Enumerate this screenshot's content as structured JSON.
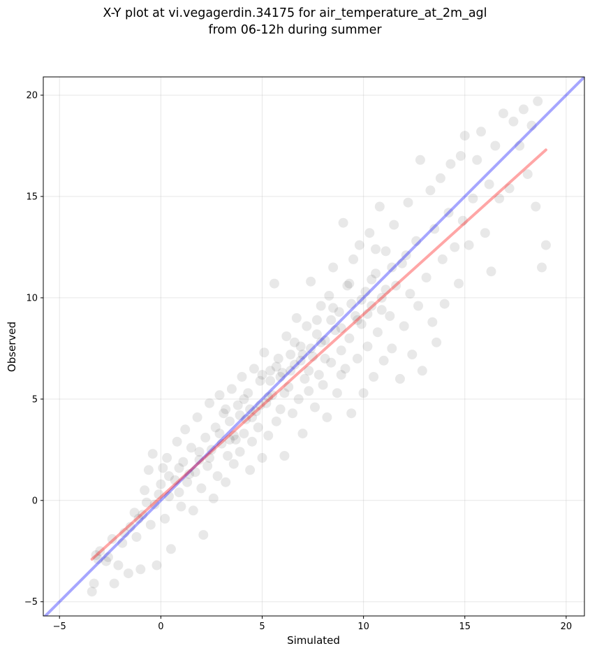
{
  "chart_data": {
    "type": "scatter",
    "title_line1": "X-Y plot at vi.vegagerdin.34175 for air_temperature_at_2m_agl",
    "title_line2": "from 06-12h during summer",
    "xlabel": "Simulated",
    "ylabel": "Observed",
    "xlim": [
      -5.8,
      20.9
    ],
    "ylim": [
      -5.7,
      20.9
    ],
    "xticks": [
      -5,
      0,
      5,
      10,
      15,
      20
    ],
    "yticks": [
      -5,
      0,
      5,
      10,
      15,
      20
    ],
    "grid": true,
    "points_color": "#000000",
    "points_opacity": 0.09,
    "identity_line": {
      "color": "#0000ff",
      "opacity": 0.35,
      "from": [
        -5.8,
        -5.8
      ],
      "to": [
        20.9,
        20.9
      ]
    },
    "fit_line": {
      "color": "#ff0000",
      "opacity": 0.35,
      "from": [
        -3.4,
        -2.9
      ],
      "to": [
        19.0,
        17.3
      ]
    },
    "points": [
      [
        -3.4,
        -4.5
      ],
      [
        -3.3,
        -4.1
      ],
      [
        -3.2,
        -2.7
      ],
      [
        -3.0,
        -2.5
      ],
      [
        -2.7,
        -3.0
      ],
      [
        -2.6,
        -2.8
      ],
      [
        -2.3,
        -4.1
      ],
      [
        -2.1,
        -3.2
      ],
      [
        -1.9,
        -2.1
      ],
      [
        -1.6,
        -3.6
      ],
      [
        -1.5,
        -1.3
      ],
      [
        -1.2,
        -1.8
      ],
      [
        -1.1,
        -0.9
      ],
      [
        -1.0,
        -3.4
      ],
      [
        -0.9,
        -0.7
      ],
      [
        -0.8,
        0.5
      ],
      [
        -0.6,
        1.5
      ],
      [
        -0.5,
        -1.2
      ],
      [
        -0.4,
        2.3
      ],
      [
        -0.3,
        -0.2
      ],
      [
        -0.2,
        -3.2
      ],
      [
        0.0,
        0.8
      ],
      [
        0.1,
        1.6
      ],
      [
        0.2,
        -0.9
      ],
      [
        0.3,
        2.1
      ],
      [
        0.4,
        0.2
      ],
      [
        0.5,
        -2.4
      ],
      [
        0.7,
        1.0
      ],
      [
        0.8,
        2.9
      ],
      [
        0.9,
        0.4
      ],
      [
        1.0,
        -0.3
      ],
      [
        1.1,
        1.9
      ],
      [
        1.2,
        3.5
      ],
      [
        1.3,
        0.9
      ],
      [
        1.5,
        2.6
      ],
      [
        1.6,
        -0.5
      ],
      [
        1.7,
        1.4
      ],
      [
        1.8,
        4.1
      ],
      [
        1.9,
        2.0
      ],
      [
        2.0,
        0.6
      ],
      [
        2.1,
        -1.7
      ],
      [
        2.2,
        3.1
      ],
      [
        2.3,
        1.7
      ],
      [
        2.4,
        4.8
      ],
      [
        2.5,
        2.5
      ],
      [
        2.6,
        0.1
      ],
      [
        2.7,
        3.6
      ],
      [
        2.8,
        1.2
      ],
      [
        2.9,
        5.2
      ],
      [
        3.0,
        2.8
      ],
      [
        3.1,
        4.3
      ],
      [
        3.2,
        0.9
      ],
      [
        3.3,
        2.2
      ],
      [
        3.4,
        3.9
      ],
      [
        3.5,
        5.5
      ],
      [
        3.6,
        1.8
      ],
      [
        3.7,
        3.0
      ],
      [
        3.8,
        4.7
      ],
      [
        3.9,
        2.4
      ],
      [
        4.0,
        6.1
      ],
      [
        4.1,
        3.3
      ],
      [
        4.2,
        4.0
      ],
      [
        4.3,
        5.3
      ],
      [
        4.4,
        1.5
      ],
      [
        4.5,
        2.9
      ],
      [
        4.6,
        6.5
      ],
      [
        4.7,
        4.4
      ],
      [
        4.8,
        3.6
      ],
      [
        4.9,
        5.9
      ],
      [
        5.0,
        2.1
      ],
      [
        5.1,
        7.3
      ],
      [
        5.2,
        4.8
      ],
      [
        5.3,
        3.2
      ],
      [
        5.4,
        6.4
      ],
      [
        5.5,
        5.2
      ],
      [
        5.6,
        10.7
      ],
      [
        5.7,
        3.9
      ],
      [
        5.8,
        7.0
      ],
      [
        5.9,
        4.5
      ],
      [
        6.0,
        6.3
      ],
      [
        6.1,
        2.2
      ],
      [
        6.2,
        8.1
      ],
      [
        6.3,
        5.6
      ],
      [
        6.4,
        7.2
      ],
      [
        6.5,
        4.3
      ],
      [
        6.6,
        6.7
      ],
      [
        6.7,
        9.0
      ],
      [
        6.8,
        5.0
      ],
      [
        6.9,
        7.6
      ],
      [
        7.0,
        3.3
      ],
      [
        7.1,
        6.0
      ],
      [
        7.2,
        8.6
      ],
      [
        7.3,
        5.4
      ],
      [
        7.4,
        10.8
      ],
      [
        7.5,
        7.1
      ],
      [
        7.6,
        4.6
      ],
      [
        7.7,
        8.9
      ],
      [
        7.8,
        6.2
      ],
      [
        7.9,
        9.6
      ],
      [
        8.0,
        5.7
      ],
      [
        8.1,
        7.9
      ],
      [
        8.2,
        4.1
      ],
      [
        8.3,
        10.1
      ],
      [
        8.4,
        6.8
      ],
      [
        8.5,
        11.5
      ],
      [
        8.6,
        8.4
      ],
      [
        8.7,
        5.3
      ],
      [
        8.8,
        9.3
      ],
      [
        8.9,
        7.4
      ],
      [
        9.0,
        13.7
      ],
      [
        9.1,
        6.5
      ],
      [
        9.2,
        10.6
      ],
      [
        9.3,
        8.0
      ],
      [
        9.4,
        4.3
      ],
      [
        9.5,
        11.9
      ],
      [
        9.6,
        9.1
      ],
      [
        9.7,
        7.0
      ],
      [
        9.8,
        12.6
      ],
      [
        9.9,
        8.7
      ],
      [
        10.0,
        5.3
      ],
      [
        10.1,
        10.3
      ],
      [
        10.2,
        7.6
      ],
      [
        10.3,
        13.2
      ],
      [
        10.4,
        9.6
      ],
      [
        10.5,
        6.1
      ],
      [
        10.6,
        11.2
      ],
      [
        10.7,
        8.3
      ],
      [
        10.8,
        14.5
      ],
      [
        10.9,
        10.0
      ],
      [
        11.0,
        6.9
      ],
      [
        11.1,
        12.3
      ],
      [
        11.3,
        9.1
      ],
      [
        11.4,
        7.5
      ],
      [
        11.5,
        13.6
      ],
      [
        11.6,
        10.6
      ],
      [
        11.8,
        6.0
      ],
      [
        11.9,
        11.7
      ],
      [
        12.0,
        8.6
      ],
      [
        12.2,
        14.7
      ],
      [
        12.3,
        10.2
      ],
      [
        12.4,
        7.2
      ],
      [
        12.6,
        12.8
      ],
      [
        12.7,
        9.6
      ],
      [
        12.8,
        16.8
      ],
      [
        12.9,
        6.4
      ],
      [
        13.1,
        11.0
      ],
      [
        13.3,
        15.3
      ],
      [
        13.4,
        8.8
      ],
      [
        13.5,
        13.4
      ],
      [
        13.6,
        7.8
      ],
      [
        13.8,
        15.9
      ],
      [
        13.9,
        11.9
      ],
      [
        14.0,
        9.7
      ],
      [
        14.2,
        14.2
      ],
      [
        14.3,
        16.6
      ],
      [
        14.5,
        12.5
      ],
      [
        14.7,
        10.7
      ],
      [
        14.8,
        17.0
      ],
      [
        14.9,
        13.8
      ],
      [
        15.0,
        18.0
      ],
      [
        15.2,
        12.6
      ],
      [
        15.4,
        14.9
      ],
      [
        15.6,
        16.8
      ],
      [
        15.8,
        18.2
      ],
      [
        16.0,
        13.2
      ],
      [
        16.2,
        15.6
      ],
      [
        16.3,
        11.3
      ],
      [
        16.5,
        17.5
      ],
      [
        16.7,
        14.9
      ],
      [
        16.9,
        19.1
      ],
      [
        17.2,
        15.4
      ],
      [
        17.4,
        18.7
      ],
      [
        17.7,
        17.5
      ],
      [
        17.9,
        19.3
      ],
      [
        18.1,
        16.1
      ],
      [
        18.3,
        18.5
      ],
      [
        18.5,
        14.5
      ],
      [
        18.6,
        19.7
      ],
      [
        18.8,
        11.5
      ],
      [
        19.0,
        12.6
      ],
      [
        -3.1,
        -2.9
      ],
      [
        -2.4,
        -1.9
      ],
      [
        -1.8,
        -1.6
      ],
      [
        -1.3,
        -0.6
      ],
      [
        -0.7,
        -0.1
      ],
      [
        -0.1,
        0.3
      ],
      [
        0.4,
        1.2
      ],
      [
        0.9,
        1.6
      ],
      [
        1.4,
        1.3
      ],
      [
        1.9,
        2.4
      ],
      [
        2.4,
        2.1
      ],
      [
        2.9,
        3.3
      ],
      [
        3.4,
        3.0
      ],
      [
        3.9,
        4.2
      ],
      [
        4.4,
        4.5
      ],
      [
        4.9,
        4.7
      ],
      [
        5.4,
        5.9
      ],
      [
        5.9,
        6.1
      ],
      [
        6.4,
        6.4
      ],
      [
        6.9,
        6.9
      ],
      [
        7.4,
        7.5
      ],
      [
        7.9,
        7.8
      ],
      [
        8.4,
        8.9
      ],
      [
        8.9,
        8.5
      ],
      [
        9.4,
        9.7
      ],
      [
        9.9,
        9.9
      ],
      [
        10.4,
        10.9
      ],
      [
        10.9,
        9.4
      ],
      [
        11.4,
        11.5
      ],
      [
        12.1,
        12.1
      ],
      [
        3.2,
        4.5
      ],
      [
        3.6,
        3.2
      ],
      [
        4.1,
        5.0
      ],
      [
        4.5,
        4.1
      ],
      [
        5.0,
        6.2
      ],
      [
        5.3,
        5.1
      ],
      [
        5.7,
        6.6
      ],
      [
        6.1,
        5.3
      ],
      [
        6.6,
        7.8
      ],
      [
        7.0,
        7.2
      ],
      [
        7.3,
        6.4
      ],
      [
        7.7,
        8.2
      ],
      [
        8.1,
        7.0
      ],
      [
        8.5,
        9.5
      ],
      [
        8.9,
        6.2
      ],
      [
        9.3,
        10.7
      ],
      [
        9.7,
        8.9
      ],
      [
        10.2,
        9.2
      ],
      [
        10.6,
        12.4
      ],
      [
        11.1,
        10.4
      ]
    ]
  }
}
